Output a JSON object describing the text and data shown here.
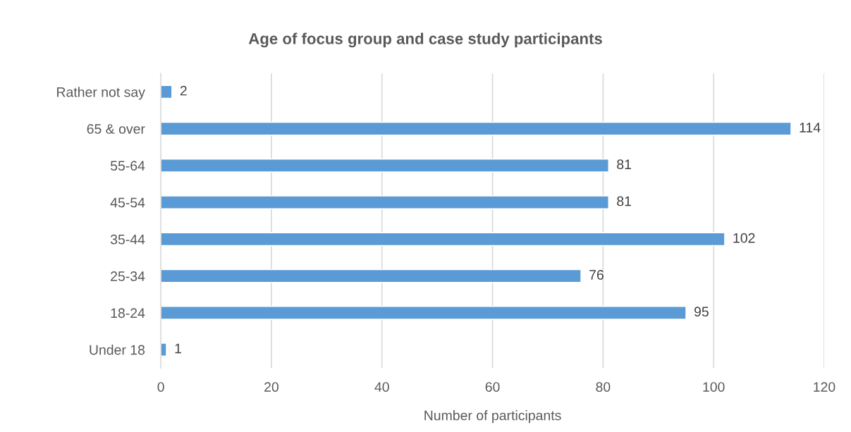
{
  "chart_data": {
    "type": "bar",
    "orientation": "horizontal",
    "title": "Age of focus group and case study participants",
    "xlabel": "Number of participants",
    "categories": [
      "Rather not say",
      "65 & over",
      "55-64",
      "45-54",
      "35-44",
      "25-34",
      "18-24",
      "Under 18"
    ],
    "values": [
      2,
      114,
      81,
      81,
      102,
      76,
      95,
      1
    ],
    "color": "#5b9bd5",
    "xlim": [
      0,
      120
    ],
    "xticks": [
      0,
      20,
      40,
      60,
      80,
      100,
      120
    ],
    "grid": "x",
    "data_labels": true
  }
}
